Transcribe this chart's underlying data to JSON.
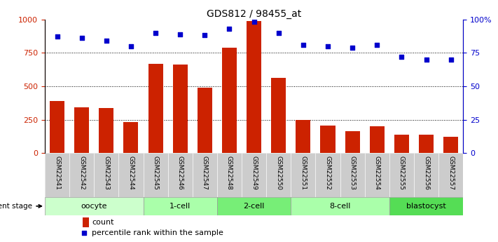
{
  "title": "GDS812 / 98455_at",
  "samples": [
    "GSM22541",
    "GSM22542",
    "GSM22543",
    "GSM22544",
    "GSM22545",
    "GSM22546",
    "GSM22547",
    "GSM22548",
    "GSM22549",
    "GSM22550",
    "GSM22551",
    "GSM22552",
    "GSM22553",
    "GSM22554",
    "GSM22555",
    "GSM22556",
    "GSM22557"
  ],
  "counts": [
    390,
    345,
    340,
    235,
    670,
    665,
    490,
    790,
    985,
    565,
    250,
    205,
    165,
    200,
    140,
    140,
    125
  ],
  "percentiles": [
    87,
    86,
    84,
    80,
    90,
    89,
    88,
    93,
    98,
    90,
    81,
    80,
    79,
    81,
    72,
    70,
    70
  ],
  "stages": [
    {
      "label": "oocyte",
      "start": 0,
      "end": 4,
      "color": "#ccffcc"
    },
    {
      "label": "1-cell",
      "start": 4,
      "end": 7,
      "color": "#aaffaa"
    },
    {
      "label": "2-cell",
      "start": 7,
      "end": 10,
      "color": "#77ee77"
    },
    {
      "label": "8-cell",
      "start": 10,
      "end": 14,
      "color": "#aaffaa"
    },
    {
      "label": "blastocyst",
      "start": 14,
      "end": 17,
      "color": "#55dd55"
    }
  ],
  "bar_color": "#cc2200",
  "dot_color": "#0000cc",
  "left_ylim": [
    0,
    1000
  ],
  "right_ylim": [
    0,
    100
  ],
  "left_yticks": [
    0,
    250,
    500,
    750,
    1000
  ],
  "right_yticks": [
    0,
    25,
    50,
    75,
    100
  ],
  "grid_values": [
    250,
    500,
    750
  ],
  "tick_bg_color": "#cccccc",
  "alt_tick_bg_color": "#bbbbbb"
}
